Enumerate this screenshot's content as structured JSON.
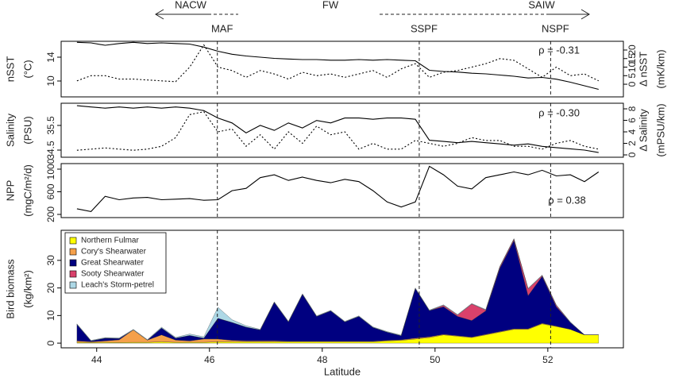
{
  "water_masses": [
    "NACW",
    "FW",
    "SAIW"
  ],
  "fronts": [
    {
      "label": "MAF",
      "lat": 46.14
    },
    {
      "label": "SSPF",
      "lat": 49.72
    },
    {
      "label": "NSPF",
      "lat": 52.05
    }
  ],
  "chart_data": [
    {
      "type": "line",
      "ylabel": [
        "nSST",
        "(°C)"
      ],
      "y2label": [
        "Δ nSST",
        "(mK/km)"
      ],
      "annotation": "ρ = -0.31",
      "xlim": [
        43.37,
        53.34
      ],
      "ylim": [
        7.33,
        16.67
      ],
      "yticks": [
        10,
        14
      ],
      "y2lim": [
        -7.4,
        25.1
      ],
      "y2ticks": [
        0,
        5,
        10,
        15,
        20
      ],
      "x": [
        43.65,
        43.9,
        44.15,
        44.4,
        44.65,
        44.9,
        45.15,
        45.4,
        45.65,
        45.9,
        46.15,
        46.4,
        46.65,
        46.9,
        47.15,
        47.4,
        47.65,
        47.9,
        48.15,
        48.4,
        48.65,
        48.9,
        49.15,
        49.4,
        49.65,
        49.9,
        50.15,
        50.4,
        50.65,
        50.9,
        51.15,
        51.4,
        51.65,
        51.9,
        52.15,
        52.4,
        52.65,
        52.9
      ],
      "series": [
        {
          "color": "#000000",
          "line_style": "solid",
          "values": [
            16.5,
            16.4,
            16.0,
            16.3,
            16.5,
            16.3,
            16.4,
            16.3,
            16.2,
            15.7,
            15.0,
            14.5,
            14.2,
            14.0,
            13.8,
            13.7,
            13.6,
            13.6,
            13.5,
            13.5,
            13.6,
            13.5,
            13.6,
            13.5,
            13.4,
            11.8,
            11.6,
            11.5,
            11.3,
            11.2,
            11.0,
            10.8,
            10.5,
            10.6,
            10.3,
            9.8,
            9.2,
            8.6
          ]
        },
        {
          "color": "#000000",
          "line_style": "dotted",
          "axis": "y2",
          "values": [
            2,
            5,
            5,
            3,
            3,
            2.5,
            2,
            1.5,
            10,
            23,
            10,
            8,
            4,
            8,
            6,
            3,
            7,
            5,
            6,
            4,
            6,
            8,
            4,
            9,
            12,
            4,
            7,
            8,
            10,
            12,
            15,
            14,
            9,
            4,
            10,
            5,
            6,
            2
          ]
        }
      ]
    },
    {
      "type": "line",
      "ylabel": [
        "Salinity",
        "(PSU)"
      ],
      "y2label": [
        "Δ Salinity",
        "(mPSU/km)"
      ],
      "annotation": "ρ = -0.30",
      "xlim": [
        43.37,
        53.34
      ],
      "ylim": [
        34.21,
        36.4
      ],
      "yticks": [
        34.5,
        35.5
      ],
      "y2lim": [
        -0.41,
        8.97
      ],
      "y2ticks": [
        0,
        2,
        4,
        6,
        8
      ],
      "x": [
        43.65,
        43.9,
        44.15,
        44.4,
        44.65,
        44.9,
        45.15,
        45.4,
        45.65,
        45.9,
        46.15,
        46.4,
        46.65,
        46.9,
        47.15,
        47.4,
        47.65,
        47.9,
        48.15,
        48.4,
        48.65,
        48.9,
        49.15,
        49.4,
        49.65,
        49.9,
        50.15,
        50.4,
        50.65,
        50.9,
        51.15,
        51.4,
        51.65,
        51.9,
        52.15,
        52.4,
        52.65,
        52.9
      ],
      "series": [
        {
          "color": "#000000",
          "line_style": "solid",
          "values": [
            36.3,
            36.25,
            36.2,
            36.25,
            36.2,
            36.25,
            36.2,
            36.25,
            36.2,
            36.1,
            35.8,
            35.6,
            35.2,
            35.5,
            35.3,
            35.6,
            35.4,
            35.7,
            35.6,
            35.8,
            35.8,
            35.75,
            35.8,
            35.8,
            35.75,
            34.9,
            34.85,
            34.8,
            34.85,
            34.8,
            34.75,
            34.7,
            34.75,
            34.65,
            34.6,
            34.55,
            34.5,
            34.4
          ]
        },
        {
          "color": "#000000",
          "line_style": "dotted",
          "axis": "y2",
          "values": [
            0.8,
            1,
            1.2,
            1,
            0.8,
            1,
            1.5,
            3,
            7,
            7.5,
            4,
            4.5,
            1.5,
            3.5,
            1,
            4,
            2,
            5,
            3.5,
            4,
            1,
            2,
            1,
            1,
            2.5,
            2,
            1.5,
            2,
            3,
            2.5,
            2.5,
            1.5,
            1.5,
            1,
            2,
            2.5,
            1.5,
            1
          ]
        }
      ]
    },
    {
      "type": "line",
      "ylabel": [
        "NPP",
        "(mgC/m²/d)"
      ],
      "annotation": "ρ = 0.38",
      "xlim": [
        43.37,
        53.34
      ],
      "ylim": [
        144,
        1098
      ],
      "yticks": [
        200,
        600,
        1000
      ],
      "x": [
        43.65,
        43.9,
        44.15,
        44.4,
        44.65,
        44.9,
        45.15,
        45.4,
        45.65,
        45.9,
        46.15,
        46.4,
        46.65,
        46.9,
        47.15,
        47.4,
        47.65,
        47.9,
        48.15,
        48.4,
        48.65,
        48.9,
        49.15,
        49.4,
        49.65,
        49.9,
        50.15,
        50.4,
        50.65,
        50.9,
        51.15,
        51.4,
        51.65,
        51.9,
        52.15,
        52.4,
        52.65,
        52.9
      ],
      "series": [
        {
          "color": "#000000",
          "line_style": "solid",
          "values": [
            300,
            250,
            520,
            460,
            490,
            500,
            460,
            470,
            480,
            450,
            460,
            620,
            660,
            850,
            900,
            800,
            860,
            800,
            760,
            820,
            780,
            620,
            420,
            330,
            420,
            1050,
            900,
            700,
            650,
            850,
            900,
            950,
            900,
            980,
            880,
            900,
            780,
            950
          ]
        }
      ]
    },
    {
      "type": "stacked_area",
      "ylabel": [
        "Bird biomass",
        "(kg/km²)"
      ],
      "xlabel": "Latitude",
      "legend": "upper left",
      "xlim": [
        43.37,
        53.34
      ],
      "xticks": [
        44,
        46,
        48,
        50,
        52
      ],
      "ylim": [
        -1.7,
        40.9
      ],
      "yticks": [
        0,
        10,
        20,
        30
      ],
      "x": [
        43.65,
        43.9,
        44.15,
        44.4,
        44.65,
        44.9,
        45.15,
        45.4,
        45.65,
        45.9,
        46.15,
        46.4,
        46.65,
        46.9,
        47.15,
        47.4,
        47.65,
        47.9,
        48.15,
        48.4,
        48.65,
        48.9,
        49.15,
        49.4,
        49.65,
        49.9,
        50.15,
        50.4,
        50.65,
        50.9,
        51.15,
        51.4,
        51.65,
        51.9,
        52.15,
        52.4,
        52.65,
        52.9
      ],
      "series": [
        {
          "name": "Northern Fulmar",
          "color": "#ffff00",
          "values": [
            0.3,
            0.2,
            0.3,
            0.2,
            0.3,
            0.3,
            0.5,
            0.3,
            0.3,
            0.3,
            0.5,
            0.5,
            0.5,
            0.5,
            0.5,
            0.5,
            0.5,
            0.5,
            0.5,
            0.5,
            0.5,
            0.5,
            0.8,
            1,
            1.5,
            2,
            3,
            2.5,
            2,
            3,
            4,
            5,
            5,
            7,
            6,
            5,
            3,
            3
          ]
        },
        {
          "name": "Cory's Shearwater",
          "color": "#f5a04a",
          "values": [
            0.5,
            0.3,
            0.5,
            1,
            4.5,
            0.8,
            2.5,
            0.8,
            0.5,
            1.2,
            1,
            0.5,
            0.3,
            0.3,
            0.3,
            0.2,
            0.2,
            0.2,
            0.2,
            0.2,
            0.2,
            0.2,
            0.2,
            0.2,
            0.3,
            0.3,
            0.2,
            0.2,
            0.2,
            0.2,
            0.2,
            0.2,
            0.2,
            0.2,
            0.2,
            0,
            0,
            0
          ]
        },
        {
          "name": "Great Shearwater",
          "color": "#000080",
          "values": [
            6,
            0.3,
            1,
            0.5,
            0,
            0,
            2.5,
            0.7,
            2,
            0.3,
            7.5,
            6.5,
            5,
            4,
            14,
            7,
            17,
            9,
            11,
            7,
            9,
            5,
            3,
            1.5,
            18,
            9.5,
            10,
            7,
            6,
            8.5,
            23,
            32,
            12,
            17,
            7,
            2.5,
            0,
            0
          ]
        },
        {
          "name": "Sooty Shearwater",
          "color": "#d9416b",
          "values": [
            0,
            0,
            0,
            0,
            0,
            0,
            0,
            0,
            0,
            0,
            0,
            0,
            0,
            0,
            0,
            0,
            0,
            0,
            0,
            0,
            0,
            0,
            0,
            0,
            0,
            0,
            0.5,
            0.5,
            6,
            0.3,
            0.5,
            0.5,
            2.5,
            0.3,
            0.5,
            0,
            0,
            0
          ]
        },
        {
          "name": "Leach's Storm-petrel",
          "color": "#add8e6",
          "values": [
            0.2,
            0.2,
            0.2,
            0.2,
            0.2,
            0.2,
            0.3,
            0.3,
            0.5,
            0.5,
            4,
            1,
            0.5,
            0.2,
            0.2,
            0.2,
            0.2,
            0.2,
            0.2,
            0.2,
            0.2,
            0.2,
            0.2,
            0.2,
            0.2,
            0.2,
            0.2,
            0.2,
            0.2,
            0.2,
            0.2,
            0.2,
            0.2,
            0.2,
            0.2,
            0.2,
            0,
            0
          ]
        }
      ]
    }
  ]
}
